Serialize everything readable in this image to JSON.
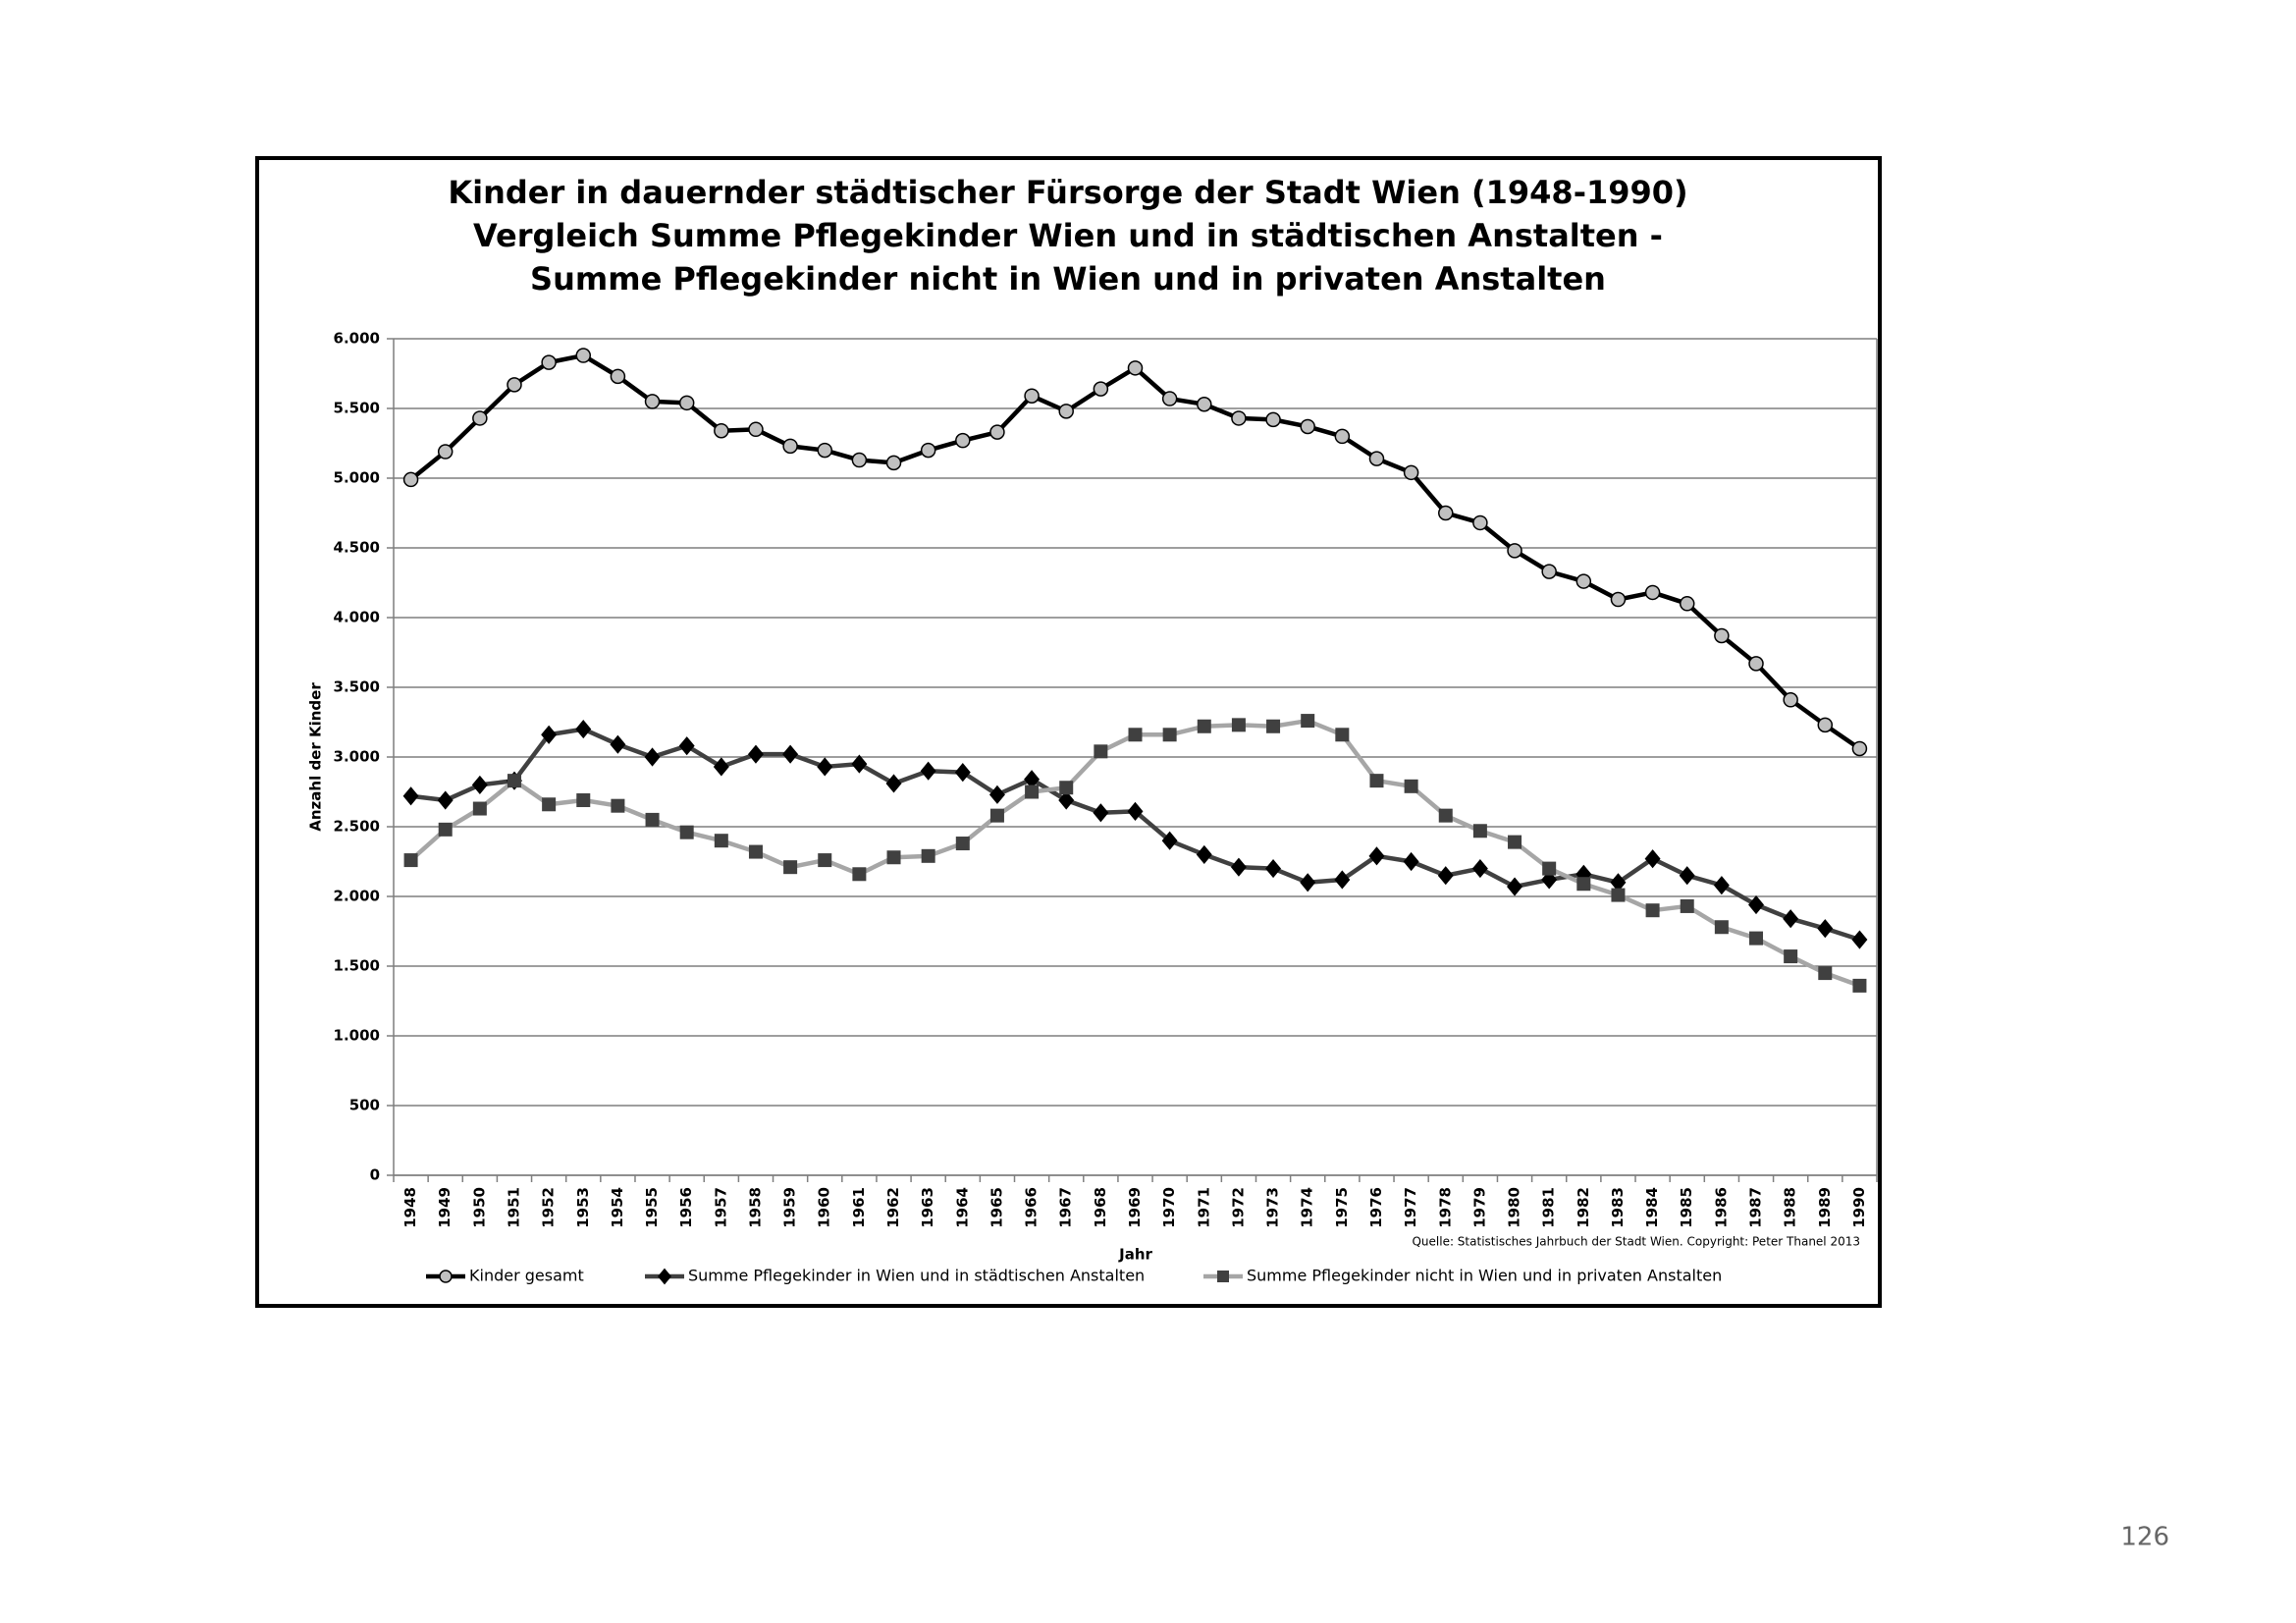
{
  "page_number": "126",
  "chart_data": {
    "type": "line",
    "title": [
      "Kinder in dauernder städtischer Fürsorge der Stadt Wien (1948-1990)",
      "Vergleich Summe Pflegekinder Wien und in städtischen Anstalten -",
      "Summe Pflegekinder nicht in Wien und in privaten Anstalten"
    ],
    "y_label": "Anzahl der Kinder",
    "x_label": "Jahr",
    "source": "Quelle: Statistisches Jahrbuch der Stadt Wien. Copyright: Peter Thanel 2013",
    "categories": [
      "1948",
      "1949",
      "1950",
      "1951",
      "1952",
      "1953",
      "1954",
      "1955",
      "1956",
      "1957",
      "1958",
      "1959",
      "1960",
      "1961",
      "1962",
      "1963",
      "1964",
      "1965",
      "1966",
      "1967",
      "1968",
      "1969",
      "1970",
      "1971",
      "1972",
      "1973",
      "1974",
      "1975",
      "1976",
      "1977",
      "1978",
      "1979",
      "1980",
      "1981",
      "1982",
      "1983",
      "1984",
      "1985",
      "1986",
      "1987",
      "1988",
      "1989",
      "1990"
    ],
    "series": [
      {
        "name": "Kinder gesamt",
        "color": "#000000",
        "marker": "circle",
        "marker_color": "#c0c0c0",
        "values": [
          4990,
          5190,
          5430,
          5670,
          5830,
          5880,
          5730,
          5550,
          5540,
          5340,
          5350,
          5230,
          5200,
          5130,
          5110,
          5200,
          5270,
          5330,
          5590,
          5480,
          5640,
          5790,
          5570,
          5530,
          5430,
          5420,
          5370,
          5300,
          5140,
          5040,
          4750,
          4680,
          4480,
          4330,
          4260,
          4130,
          4180,
          4100,
          3870,
          3670,
          3410,
          3230,
          3060
        ]
      },
      {
        "name": "Summe Pflegekinder in Wien und in städtischen Anstalten",
        "color": "#404040",
        "marker": "diamond",
        "marker_color": "#000000",
        "values": [
          2720,
          2690,
          2800,
          2830,
          3160,
          3200,
          3090,
          3000,
          3080,
          2930,
          3020,
          3020,
          2930,
          2950,
          2810,
          2900,
          2890,
          2730,
          2840,
          2690,
          2600,
          2610,
          2400,
          2300,
          2210,
          2200,
          2100,
          2120,
          2290,
          2250,
          2150,
          2200,
          2070,
          2120,
          2160,
          2100,
          2270,
          2150,
          2080,
          1940,
          1840,
          1770,
          1690
        ]
      },
      {
        "name": "Summe Pflegekinder nicht in Wien und in privaten Anstalten",
        "color": "#a6a6a6",
        "marker": "square",
        "marker_color": "#404040",
        "values": [
          2260,
          2480,
          2630,
          2830,
          2660,
          2690,
          2650,
          2550,
          2460,
          2400,
          2320,
          2210,
          2260,
          2160,
          2280,
          2290,
          2380,
          2580,
          2750,
          2780,
          3040,
          3160,
          3160,
          3220,
          3230,
          3220,
          3260,
          3160,
          2830,
          2790,
          2580,
          2470,
          2390,
          2200,
          2090,
          2010,
          1900,
          1930,
          1780,
          1700,
          1570,
          1450,
          1360
        ]
      }
    ],
    "ylim": [
      0,
      6000
    ],
    "yticks": [
      0,
      500,
      {
        "value": 1000,
        "label": "1.000"
      },
      {
        "value": 1500,
        "label": "1.500"
      },
      {
        "value": 2000,
        "label": "2.000"
      },
      {
        "value": 2500,
        "label": "2.500"
      },
      {
        "value": 3000,
        "label": "3.000"
      },
      {
        "value": 3500,
        "label": "3.500"
      },
      {
        "value": 4000,
        "label": "4.000"
      },
      {
        "value": 4500,
        "label": "4.500"
      },
      {
        "value": 5000,
        "label": "5.000"
      },
      {
        "value": 5500,
        "label": "5.500"
      },
      {
        "value": 6000,
        "label": "6.000"
      }
    ],
    "grid": true
  }
}
